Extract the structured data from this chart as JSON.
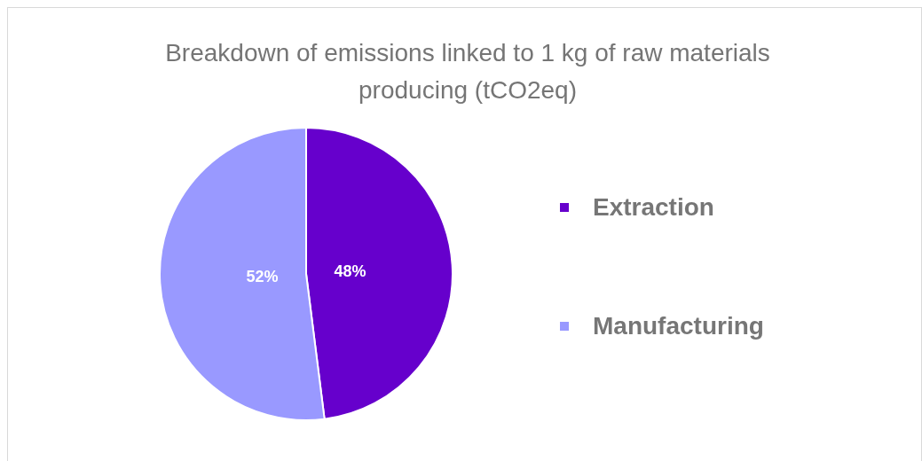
{
  "chart_data": {
    "type": "pie",
    "title": "Breakdown of emissions linked to 1 kg of raw materials producing (tCO2eq)",
    "categories": [
      "Extraction",
      "Manufacturing"
    ],
    "values": [
      48,
      52
    ],
    "colors": [
      "#6600cc",
      "#9999ff"
    ],
    "value_labels": [
      "48%",
      "52%"
    ],
    "legend": "right"
  }
}
